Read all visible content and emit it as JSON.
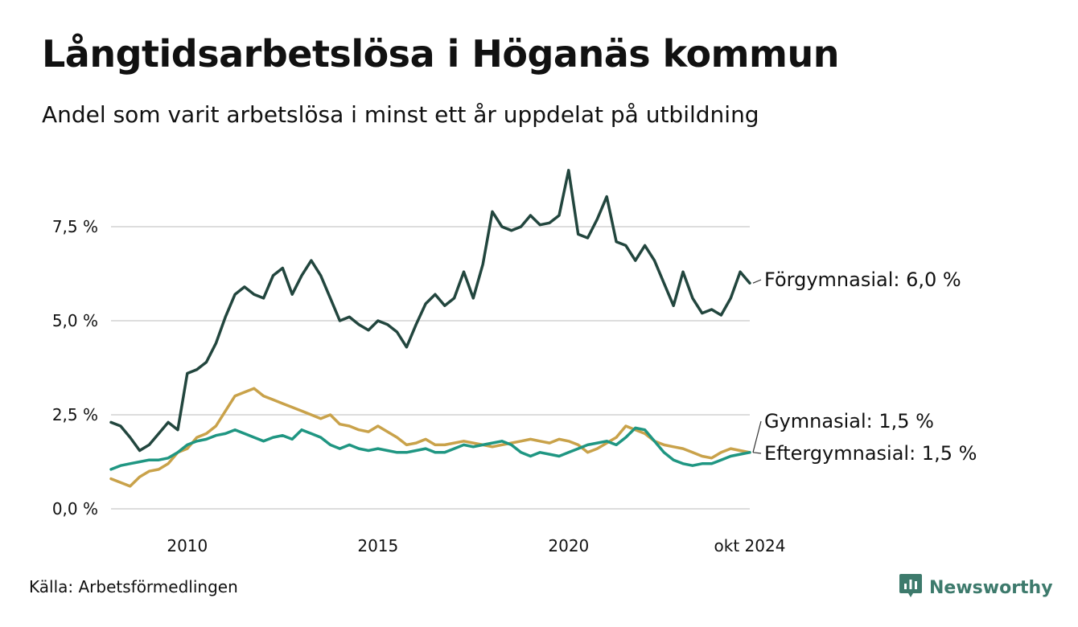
{
  "title": "Långtidsarbetslösa i Höganäs kommun",
  "subtitle": "Andel som varit arbetslösa i minst ett år uppdelat på utbildning",
  "source": "Källa: Arbetsförmedlingen",
  "brand": {
    "name": "Newsworthy",
    "icon": "newsworthy-logo-icon",
    "color": "#3d7a6c"
  },
  "chart_data": {
    "type": "line",
    "title": "Långtidsarbetslösa i Höganäs kommun",
    "subtitle": "Andel som varit arbetslösa i minst ett år uppdelat på utbildning",
    "xlabel": "",
    "ylabel": "",
    "x_ticks": [
      {
        "x": 2010.0,
        "label": "2010"
      },
      {
        "x": 2015.0,
        "label": "2015"
      },
      {
        "x": 2020.0,
        "label": "2020"
      },
      {
        "x": 2024.75,
        "label": "okt 2024"
      }
    ],
    "y_ticks": [
      {
        "y": 0.0,
        "label": "0,0 %"
      },
      {
        "y": 2.5,
        "label": "2,5 %"
      },
      {
        "y": 5.0,
        "label": "5,0 %"
      },
      {
        "y": 7.5,
        "label": "7,5 %"
      }
    ],
    "xlim": [
      2008.0,
      2024.75
    ],
    "ylim": [
      0,
      9.5
    ],
    "grid": "horizontal",
    "legend": "direct labels at right end of lines",
    "series": [
      {
        "name": "Förgymnasial",
        "end_label": "Förgymnasial: 6,0 %",
        "color": "#22463e",
        "points": [
          [
            2008.0,
            2.3
          ],
          [
            2008.25,
            2.2
          ],
          [
            2008.5,
            1.9
          ],
          [
            2008.75,
            1.55
          ],
          [
            2009.0,
            1.7
          ],
          [
            2009.25,
            2.0
          ],
          [
            2009.5,
            2.3
          ],
          [
            2009.75,
            2.1
          ],
          [
            2010.0,
            3.6
          ],
          [
            2010.25,
            3.7
          ],
          [
            2010.5,
            3.9
          ],
          [
            2010.75,
            4.4
          ],
          [
            2011.0,
            5.1
          ],
          [
            2011.25,
            5.7
          ],
          [
            2011.5,
            5.9
          ],
          [
            2011.75,
            5.7
          ],
          [
            2012.0,
            5.6
          ],
          [
            2012.25,
            6.2
          ],
          [
            2012.5,
            6.4
          ],
          [
            2012.75,
            5.7
          ],
          [
            2013.0,
            6.2
          ],
          [
            2013.25,
            6.6
          ],
          [
            2013.5,
            6.2
          ],
          [
            2013.75,
            5.6
          ],
          [
            2014.0,
            5.0
          ],
          [
            2014.25,
            5.1
          ],
          [
            2014.5,
            4.9
          ],
          [
            2014.75,
            4.75
          ],
          [
            2015.0,
            5.0
          ],
          [
            2015.25,
            4.9
          ],
          [
            2015.5,
            4.7
          ],
          [
            2015.75,
            4.3
          ],
          [
            2016.0,
            4.9
          ],
          [
            2016.25,
            5.45
          ],
          [
            2016.5,
            5.7
          ],
          [
            2016.75,
            5.4
          ],
          [
            2017.0,
            5.6
          ],
          [
            2017.25,
            6.3
          ],
          [
            2017.5,
            5.6
          ],
          [
            2017.75,
            6.5
          ],
          [
            2018.0,
            7.9
          ],
          [
            2018.25,
            7.5
          ],
          [
            2018.5,
            7.4
          ],
          [
            2018.75,
            7.5
          ],
          [
            2019.0,
            7.8
          ],
          [
            2019.25,
            7.55
          ],
          [
            2019.5,
            7.6
          ],
          [
            2019.75,
            7.8
          ],
          [
            2020.0,
            9.0
          ],
          [
            2020.25,
            7.3
          ],
          [
            2020.5,
            7.2
          ],
          [
            2020.75,
            7.7
          ],
          [
            2021.0,
            8.3
          ],
          [
            2021.25,
            7.1
          ],
          [
            2021.5,
            7.0
          ],
          [
            2021.75,
            6.6
          ],
          [
            2022.0,
            7.0
          ],
          [
            2022.25,
            6.6
          ],
          [
            2022.5,
            6.0
          ],
          [
            2022.75,
            5.4
          ],
          [
            2023.0,
            6.3
          ],
          [
            2023.25,
            5.6
          ],
          [
            2023.5,
            5.2
          ],
          [
            2023.75,
            5.3
          ],
          [
            2024.0,
            5.15
          ],
          [
            2024.25,
            5.6
          ],
          [
            2024.5,
            6.3
          ],
          [
            2024.75,
            6.0
          ]
        ]
      },
      {
        "name": "Gymnasial",
        "end_label": "Gymnasial: 1,5 %",
        "color": "#c9a24a",
        "points": [
          [
            2008.0,
            0.8
          ],
          [
            2008.25,
            0.7
          ],
          [
            2008.5,
            0.6
          ],
          [
            2008.75,
            0.85
          ],
          [
            2009.0,
            1.0
          ],
          [
            2009.25,
            1.05
          ],
          [
            2009.5,
            1.2
          ],
          [
            2009.75,
            1.5
          ],
          [
            2010.0,
            1.6
          ],
          [
            2010.25,
            1.9
          ],
          [
            2010.5,
            2.0
          ],
          [
            2010.75,
            2.2
          ],
          [
            2011.0,
            2.6
          ],
          [
            2011.25,
            3.0
          ],
          [
            2011.5,
            3.1
          ],
          [
            2011.75,
            3.2
          ],
          [
            2012.0,
            3.0
          ],
          [
            2012.25,
            2.9
          ],
          [
            2012.5,
            2.8
          ],
          [
            2012.75,
            2.7
          ],
          [
            2013.0,
            2.6
          ],
          [
            2013.25,
            2.5
          ],
          [
            2013.5,
            2.4
          ],
          [
            2013.75,
            2.5
          ],
          [
            2014.0,
            2.25
          ],
          [
            2014.25,
            2.2
          ],
          [
            2014.5,
            2.1
          ],
          [
            2014.75,
            2.05
          ],
          [
            2015.0,
            2.2
          ],
          [
            2015.25,
            2.05
          ],
          [
            2015.5,
            1.9
          ],
          [
            2015.75,
            1.7
          ],
          [
            2016.0,
            1.75
          ],
          [
            2016.25,
            1.85
          ],
          [
            2016.5,
            1.7
          ],
          [
            2016.75,
            1.7
          ],
          [
            2017.0,
            1.75
          ],
          [
            2017.25,
            1.8
          ],
          [
            2017.5,
            1.75
          ],
          [
            2017.75,
            1.7
          ],
          [
            2018.0,
            1.65
          ],
          [
            2018.25,
            1.7
          ],
          [
            2018.5,
            1.75
          ],
          [
            2018.75,
            1.8
          ],
          [
            2019.0,
            1.85
          ],
          [
            2019.25,
            1.8
          ],
          [
            2019.5,
            1.75
          ],
          [
            2019.75,
            1.85
          ],
          [
            2020.0,
            1.8
          ],
          [
            2020.25,
            1.7
          ],
          [
            2020.5,
            1.5
          ],
          [
            2020.75,
            1.6
          ],
          [
            2021.0,
            1.75
          ],
          [
            2021.25,
            1.9
          ],
          [
            2021.5,
            2.2
          ],
          [
            2021.75,
            2.1
          ],
          [
            2022.0,
            2.0
          ],
          [
            2022.25,
            1.8
          ],
          [
            2022.5,
            1.7
          ],
          [
            2022.75,
            1.65
          ],
          [
            2023.0,
            1.6
          ],
          [
            2023.25,
            1.5
          ],
          [
            2023.5,
            1.4
          ],
          [
            2023.75,
            1.35
          ],
          [
            2024.0,
            1.5
          ],
          [
            2024.25,
            1.6
          ],
          [
            2024.5,
            1.55
          ],
          [
            2024.75,
            1.5
          ]
        ]
      },
      {
        "name": "Eftergymnasial",
        "end_label": "Eftergymnasial: 1,5 %",
        "color": "#1f9682",
        "points": [
          [
            2008.0,
            1.05
          ],
          [
            2008.25,
            1.15
          ],
          [
            2008.5,
            1.2
          ],
          [
            2008.75,
            1.25
          ],
          [
            2009.0,
            1.3
          ],
          [
            2009.25,
            1.3
          ],
          [
            2009.5,
            1.35
          ],
          [
            2009.75,
            1.5
          ],
          [
            2010.0,
            1.7
          ],
          [
            2010.25,
            1.8
          ],
          [
            2010.5,
            1.85
          ],
          [
            2010.75,
            1.95
          ],
          [
            2011.0,
            2.0
          ],
          [
            2011.25,
            2.1
          ],
          [
            2011.5,
            2.0
          ],
          [
            2011.75,
            1.9
          ],
          [
            2012.0,
            1.8
          ],
          [
            2012.25,
            1.9
          ],
          [
            2012.5,
            1.95
          ],
          [
            2012.75,
            1.85
          ],
          [
            2013.0,
            2.1
          ],
          [
            2013.25,
            2.0
          ],
          [
            2013.5,
            1.9
          ],
          [
            2013.75,
            1.7
          ],
          [
            2014.0,
            1.6
          ],
          [
            2014.25,
            1.7
          ],
          [
            2014.5,
            1.6
          ],
          [
            2014.75,
            1.55
          ],
          [
            2015.0,
            1.6
          ],
          [
            2015.25,
            1.55
          ],
          [
            2015.5,
            1.5
          ],
          [
            2015.75,
            1.5
          ],
          [
            2016.0,
            1.55
          ],
          [
            2016.25,
            1.6
          ],
          [
            2016.5,
            1.5
          ],
          [
            2016.75,
            1.5
          ],
          [
            2017.0,
            1.6
          ],
          [
            2017.25,
            1.7
          ],
          [
            2017.5,
            1.65
          ],
          [
            2017.75,
            1.7
          ],
          [
            2018.0,
            1.75
          ],
          [
            2018.25,
            1.8
          ],
          [
            2018.5,
            1.7
          ],
          [
            2018.75,
            1.5
          ],
          [
            2019.0,
            1.4
          ],
          [
            2019.25,
            1.5
          ],
          [
            2019.5,
            1.45
          ],
          [
            2019.75,
            1.4
          ],
          [
            2020.0,
            1.5
          ],
          [
            2020.25,
            1.6
          ],
          [
            2020.5,
            1.7
          ],
          [
            2020.75,
            1.75
          ],
          [
            2021.0,
            1.8
          ],
          [
            2021.25,
            1.7
          ],
          [
            2021.5,
            1.9
          ],
          [
            2021.75,
            2.15
          ],
          [
            2022.0,
            2.1
          ],
          [
            2022.25,
            1.8
          ],
          [
            2022.5,
            1.5
          ],
          [
            2022.75,
            1.3
          ],
          [
            2023.0,
            1.2
          ],
          [
            2023.25,
            1.15
          ],
          [
            2023.5,
            1.2
          ],
          [
            2023.75,
            1.2
          ],
          [
            2024.0,
            1.3
          ],
          [
            2024.25,
            1.4
          ],
          [
            2024.5,
            1.45
          ],
          [
            2024.75,
            1.5
          ]
        ]
      }
    ]
  }
}
